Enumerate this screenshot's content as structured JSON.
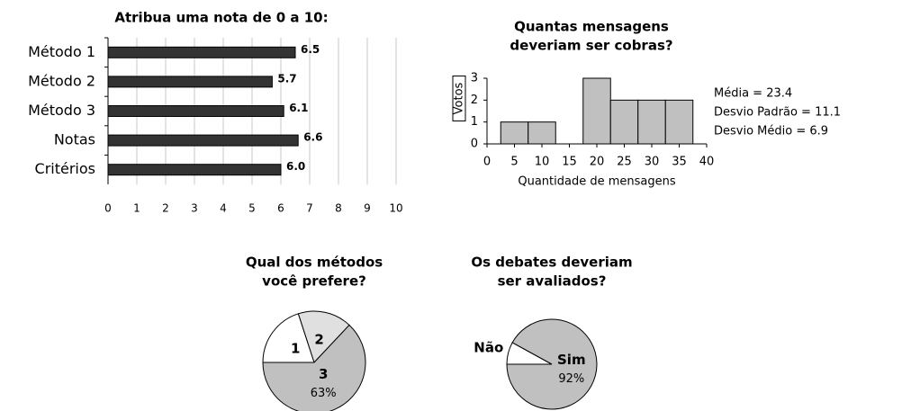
{
  "chart_data": [
    {
      "type": "barh",
      "title": "Atribua uma nota de 0 a 10:",
      "categories": [
        "Método 1",
        "Método 2",
        "Método 3",
        "Notas",
        "Critérios"
      ],
      "values": [
        6.5,
        5.7,
        6.1,
        6.6,
        6.0
      ],
      "value_labels": [
        "6.5",
        "5.7",
        "6.1",
        "6.6",
        "6.0"
      ],
      "color": "#333333",
      "xlim": [
        0,
        10
      ],
      "xticks": [
        0,
        1,
        2,
        3,
        4,
        5,
        6,
        7,
        8,
        9,
        10
      ],
      "grid": true
    },
    {
      "type": "histogram",
      "title": [
        "Quantas mensagens",
        "deveriam ser cobras?"
      ],
      "bins": [
        2.5,
        7.5,
        12.5,
        17.5,
        22.5,
        27.5,
        32.5,
        37.5
      ],
      "values": [
        1,
        1,
        0,
        3,
        2,
        2,
        2
      ],
      "color": "#c0c0c0",
      "xlim": [
        0,
        40
      ],
      "xticks": [
        0,
        5,
        10,
        15,
        20,
        25,
        30,
        35,
        40
      ],
      "ylim": [
        0,
        3
      ],
      "yticks": [
        0,
        1,
        2,
        3
      ],
      "xlabel": "Quantidade de mensagens",
      "ylabel": "Votos",
      "annotations": [
        "Média = 23.4",
        "Desvio Padrão = 11.1",
        "Desvio Médio = 6.9"
      ]
    },
    {
      "type": "pie",
      "title": [
        "Qual dos métodos",
        "você prefere?"
      ],
      "categories": [
        "1",
        "2",
        "3"
      ],
      "values": [
        20,
        17,
        63
      ],
      "value_labels": [
        null,
        null,
        "63%"
      ],
      "colors": [
        "#ffffff",
        "#e0e0e0",
        "#c0c0c0"
      ]
    },
    {
      "type": "pie",
      "title": [
        "Os debates deveriam",
        "ser avaliados?"
      ],
      "categories": [
        "Não",
        "Sim"
      ],
      "values": [
        8,
        92
      ],
      "value_labels": [
        null,
        "92%"
      ],
      "colors": [
        "#ffffff",
        "#c0c0c0"
      ]
    }
  ]
}
